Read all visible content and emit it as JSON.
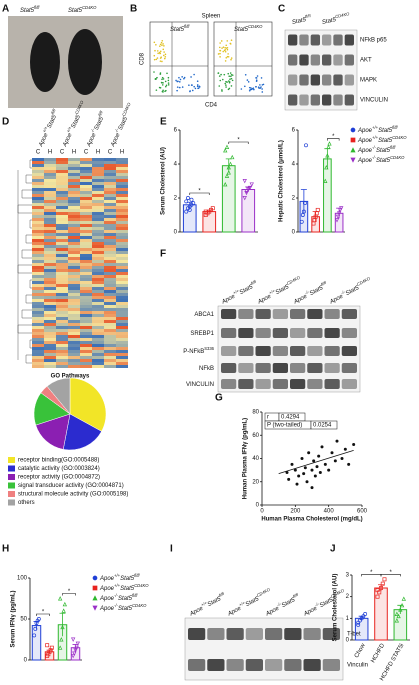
{
  "panel_labels": [
    "A",
    "B",
    "C",
    "D",
    "E",
    "F",
    "G",
    "H",
    "I",
    "J"
  ],
  "A": {
    "labels": [
      [
        "Stat5",
        "fl/fl"
      ],
      [
        "Stat5",
        "CD4KO"
      ]
    ]
  },
  "B": {
    "title": "Spleen",
    "y_label": "CD8",
    "x_label": "CD4",
    "labels": [
      [
        "Stat5",
        "fl/fl"
      ],
      [
        "Stat5",
        "CD4KO"
      ]
    ]
  },
  "C": {
    "groups": [
      [
        "Stat5",
        "fl/fl"
      ],
      [
        "Stat5",
        "CD4KO"
      ]
    ],
    "rows": [
      "NFkB p65",
      "AKT",
      "MAPK",
      "VINCULIN"
    ]
  },
  "D": {
    "groups": [
      [
        "Apoe",
        "+/+",
        "Stat5",
        "fl/fl"
      ],
      [
        "Apoe",
        "+/+",
        "Stat5",
        "CD4KO"
      ],
      [
        "Apoe",
        "-/-",
        "Stat5",
        "fl/fl"
      ],
      [
        "Apoe",
        "-/-",
        "Stat5",
        "CD4KO"
      ]
    ],
    "columns": [
      "C",
      "H",
      "C",
      "H",
      "C",
      "H",
      "C",
      "H"
    ]
  },
  "F": {
    "groups": [
      [
        "Apoe",
        "+/+",
        "Stat5",
        "fl/fl"
      ],
      [
        "Apoe",
        "+/+",
        "Stat5",
        "CD4KO"
      ],
      [
        "Apoe",
        "-/-",
        "Stat5",
        "fl/fl"
      ],
      [
        "Apoe",
        "-/-",
        "Stat5",
        "CD4KO"
      ]
    ],
    "rows": [
      [
        "ABCA1"
      ],
      [
        "SREBP1"
      ],
      [
        "P-NFkB",
        "S336"
      ],
      [
        "NFkB"
      ],
      [
        "VINCULIN"
      ]
    ]
  },
  "I": {
    "groups": [
      [
        "Apoe",
        "+/+",
        "Stat5",
        "fl/fl"
      ],
      [
        "Apoe",
        "+/+",
        "Stat5",
        "CD4KO"
      ],
      [
        "Apoe",
        "-/-",
        "Stat5",
        "fl/fl"
      ],
      [
        "Apoe",
        "-/-",
        "Stat5",
        "CD4KO"
      ]
    ],
    "rows": [
      "T-bet",
      "Vinculin"
    ]
  },
  "chart_data": [
    {
      "type": "pie",
      "title": "GO Pathways",
      "categories": [
        "receptor binding(GO:0005488)",
        "catalytic activity (GO:0003824)",
        "receptor activity (GO:0004872)",
        "signal transducer activity (GO:0004871)",
        "structural molecule activity (GO:0005198)",
        "others"
      ],
      "values": [
        33,
        20,
        17,
        15,
        4,
        11
      ],
      "colors": [
        "#f2e527",
        "#2b2bcf",
        "#8b1fb2",
        "#39c23a",
        "#ef8080",
        "#a3a3a3"
      ]
    },
    {
      "type": "bar",
      "y_label": "Serum Cholesterol (AU)",
      "ylim": [
        0,
        6
      ],
      "yticks": [
        0,
        2,
        4,
        6
      ],
      "annotations": [
        "*",
        "*"
      ],
      "series": [
        {
          "name": [
            "Apoe",
            "+/+",
            "Stat5",
            "fl/fl"
          ],
          "color": "#1f3fd6",
          "marker": "circle",
          "values": [
            1.6
          ],
          "errors": [
            0.15
          ],
          "points": [
            1.2,
            1.4,
            1.5,
            1.6,
            1.7,
            1.8,
            2.0,
            1.3,
            1.9
          ]
        },
        {
          "name": [
            "Apoe",
            "+/+",
            "Stat5",
            "CD4KO"
          ],
          "color": "#e8231f",
          "marker": "square",
          "values": [
            1.2
          ],
          "errors": [
            0.08
          ],
          "points": [
            1.0,
            1.1,
            1.2,
            1.3,
            1.4,
            1.2
          ]
        },
        {
          "name": [
            "Apoe",
            "-/-",
            "Stat5",
            "fl/fl"
          ],
          "color": "#2fb82f",
          "marker": "triangle",
          "values": [
            3.9
          ],
          "errors": [
            0.4
          ],
          "points": [
            2.8,
            3.3,
            3.8,
            4.0,
            4.4,
            4.8,
            5.0,
            3.5
          ]
        },
        {
          "name": [
            "Apoe",
            "-/-",
            "Stat5",
            "CD4KO"
          ],
          "color": "#9b30c8",
          "marker": "down",
          "values": [
            2.5
          ],
          "errors": [
            0.15
          ],
          "points": [
            2.0,
            2.3,
            2.5,
            2.6,
            2.8,
            3.0,
            2.4
          ]
        }
      ]
    },
    {
      "type": "bar",
      "y_label": "Hepatic Cholesterol (μmol/L)",
      "ylim": [
        0,
        6
      ],
      "yticks": [
        0,
        2,
        4,
        6
      ],
      "annotations": [
        "*"
      ],
      "series": [
        {
          "color": "#1f3fd6",
          "marker": "circle",
          "values": [
            1.8
          ],
          "errors": [
            0.7
          ],
          "points": [
            0.6,
            1.0,
            1.2,
            1.7,
            5.1
          ]
        },
        {
          "color": "#e8231f",
          "marker": "square",
          "values": [
            0.9
          ],
          "errors": [
            0.3
          ],
          "points": [
            0.5,
            0.7,
            0.9,
            1.1,
            1.3
          ]
        },
        {
          "color": "#2fb82f",
          "marker": "triangle",
          "values": [
            4.3
          ],
          "errors": [
            0.6
          ],
          "points": [
            3.0,
            3.8,
            4.5,
            5.0,
            5.2
          ]
        },
        {
          "color": "#9b30c8",
          "marker": "down",
          "values": [
            1.1
          ],
          "errors": [
            0.3
          ],
          "points": [
            0.7,
            0.9,
            1.1,
            1.3,
            1.4
          ]
        }
      ]
    },
    {
      "type": "scatter",
      "x_label": "Human Plasma Cholesterol (mg/dL)",
      "y_label": "Human Plasma IFNγ (pg/mL)",
      "xlim": [
        0,
        600
      ],
      "xticks": [
        0,
        200,
        400,
        600
      ],
      "ylim": [
        0,
        80
      ],
      "yticks": [
        0,
        20,
        40,
        60,
        80
      ],
      "x": [
        150,
        160,
        180,
        200,
        210,
        220,
        240,
        250,
        260,
        270,
        280,
        300,
        310,
        320,
        330,
        340,
        350,
        360,
        380,
        400,
        420,
        440,
        450,
        480,
        500,
        520,
        550,
        300
      ],
      "values": [
        28,
        22,
        35,
        30,
        18,
        25,
        40,
        27,
        32,
        20,
        45,
        30,
        38,
        25,
        33,
        42,
        28,
        50,
        35,
        30,
        45,
        38,
        55,
        40,
        48,
        35,
        52,
        15
      ],
      "trendline": {
        "x": [
          100,
          550
        ],
        "values": [
          27,
          47
        ]
      },
      "stats": [
        [
          "r",
          0.4294
        ],
        [
          "P (two-tailed)",
          0.0254
        ]
      ]
    },
    {
      "type": "bar",
      "y_label": "Serum IFNγ (pg/mL)",
      "ylim": [
        0,
        100
      ],
      "yticks": [
        0,
        50,
        100
      ],
      "annotations": [
        "*",
        "*"
      ],
      "series": [
        {
          "name": [
            "Apoe",
            "+/+",
            "Stat5",
            "fl/fl"
          ],
          "color": "#1f3fd6",
          "marker": "circle",
          "values": [
            42
          ],
          "errors": [
            5
          ],
          "points": [
            30,
            38,
            45,
            48,
            50
          ]
        },
        {
          "name": [
            "Apoe",
            "+/+",
            "Stat5",
            "CD4KO"
          ],
          "color": "#e8231f",
          "marker": "square",
          "values": [
            10
          ],
          "errors": [
            2
          ],
          "points": [
            5,
            7,
            10,
            12,
            15,
            18
          ]
        },
        {
          "name": [
            "Apoe",
            "-/-",
            "Stat5",
            "fl/fl"
          ],
          "color": "#2fb82f",
          "marker": "triangle",
          "values": [
            43
          ],
          "errors": [
            14
          ],
          "points": [
            15,
            25,
            40,
            60,
            68,
            75
          ]
        },
        {
          "name": [
            "Apoe",
            "-/-",
            "Stat5",
            "CD4KO"
          ],
          "color": "#9b30c8",
          "marker": "down",
          "values": [
            15
          ],
          "errors": [
            4
          ],
          "points": [
            5,
            8,
            12,
            15,
            20,
            25
          ]
        }
      ]
    },
    {
      "type": "bar",
      "y_label": "Serum Cholesterol (AU)",
      "ylim": [
        0,
        3
      ],
      "yticks": [
        0,
        1,
        2,
        3
      ],
      "annotations": [
        "*",
        "*"
      ],
      "categories": [
        "Chow",
        "HCHFD",
        "HCHFD STAT5i"
      ],
      "values": [
        1.0,
        2.4,
        1.4
      ],
      "errors": [
        0.1,
        0.15,
        0.2
      ],
      "points": [
        [
          0.8,
          0.9,
          1.0,
          1.1,
          1.2,
          0.7
        ],
        [
          2.0,
          2.2,
          2.4,
          2.6,
          2.8,
          2.3
        ],
        [
          0.9,
          1.1,
          1.4,
          1.6,
          1.9,
          1.2
        ]
      ],
      "colors": [
        "#1f3fd6",
        "#e8231f",
        "#2fb82f"
      ],
      "markers": [
        "circle",
        "square",
        "triangle"
      ]
    }
  ]
}
